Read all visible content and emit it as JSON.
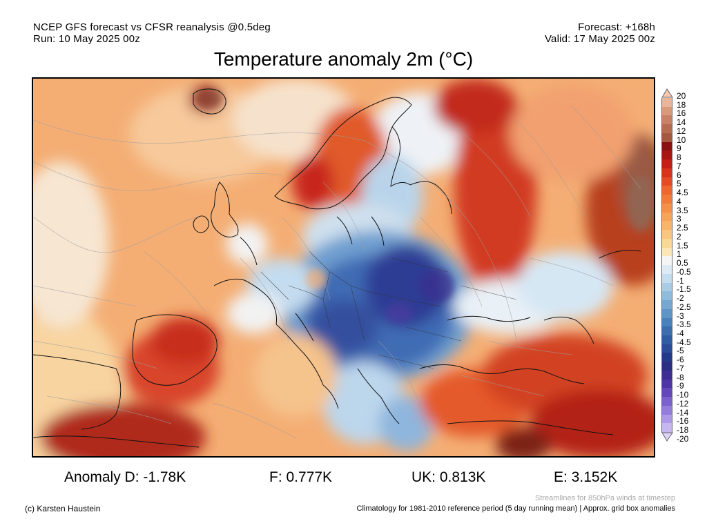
{
  "header": {
    "line1_left": "NCEP GFS forecast vs CFSR reanalysis @0.5deg",
    "line2_left": "Run: 10 May 2025 00z",
    "line1_right": "Forecast: +168h",
    "line2_right": "Valid: 17 May 2025 00z"
  },
  "title": "Temperature anomaly 2m (°C)",
  "colorbar": {
    "labels": [
      "20",
      "18",
      "16",
      "14",
      "12",
      "10",
      "9",
      "8",
      "7",
      "6",
      "5",
      "4.5",
      "4",
      "3.5",
      "3",
      "2.5",
      "2",
      "1.5",
      "1",
      "0.5",
      "-0.5",
      "-1",
      "-1.5",
      "-2",
      "-2.5",
      "-3",
      "-3.5",
      "-4",
      "-4.5",
      "-5",
      "-6",
      "-7",
      "-8",
      "-9",
      "-10",
      "-12",
      "-14",
      "-16",
      "-18",
      "-20"
    ],
    "colors": [
      "#f6c8b0",
      "#eab59a",
      "#d99a7c",
      "#c98266",
      "#b56c50",
      "#a45a40",
      "#8b1010",
      "#a81614",
      "#c51d18",
      "#d8321c",
      "#e44a26",
      "#ee6530",
      "#f27b3a",
      "#f5904a",
      "#f6a45a",
      "#f7b56c",
      "#f8c681",
      "#f9d797",
      "#fae6b6",
      "#f5f5f5",
      "#dbeaf5",
      "#c4ddef",
      "#a9cce6",
      "#8fbbdc",
      "#75a7d1",
      "#5f94c6",
      "#4b81bb",
      "#3c6eae",
      "#305ca3",
      "#294b98",
      "#23398a",
      "#2a2d82",
      "#3d2c92",
      "#4e35a6",
      "#6448ba",
      "#7b61cb",
      "#947dda",
      "#ad99e6",
      "#c6b7f0",
      "#ddd2f8"
    ]
  },
  "stats": {
    "d": "Anomaly D: -1.78K",
    "f": "F: 0.777K",
    "uk": "UK: 0.813K",
    "e": "E: 3.152K"
  },
  "footer": {
    "streamlines": "Streamlines for 850hPa winds at timestep",
    "credit": "(c) Karsten Haustein",
    "climatology": "Climatology for 1981-2010 reference period (5 day running mean) | Approx. grid box anomalies"
  }
}
